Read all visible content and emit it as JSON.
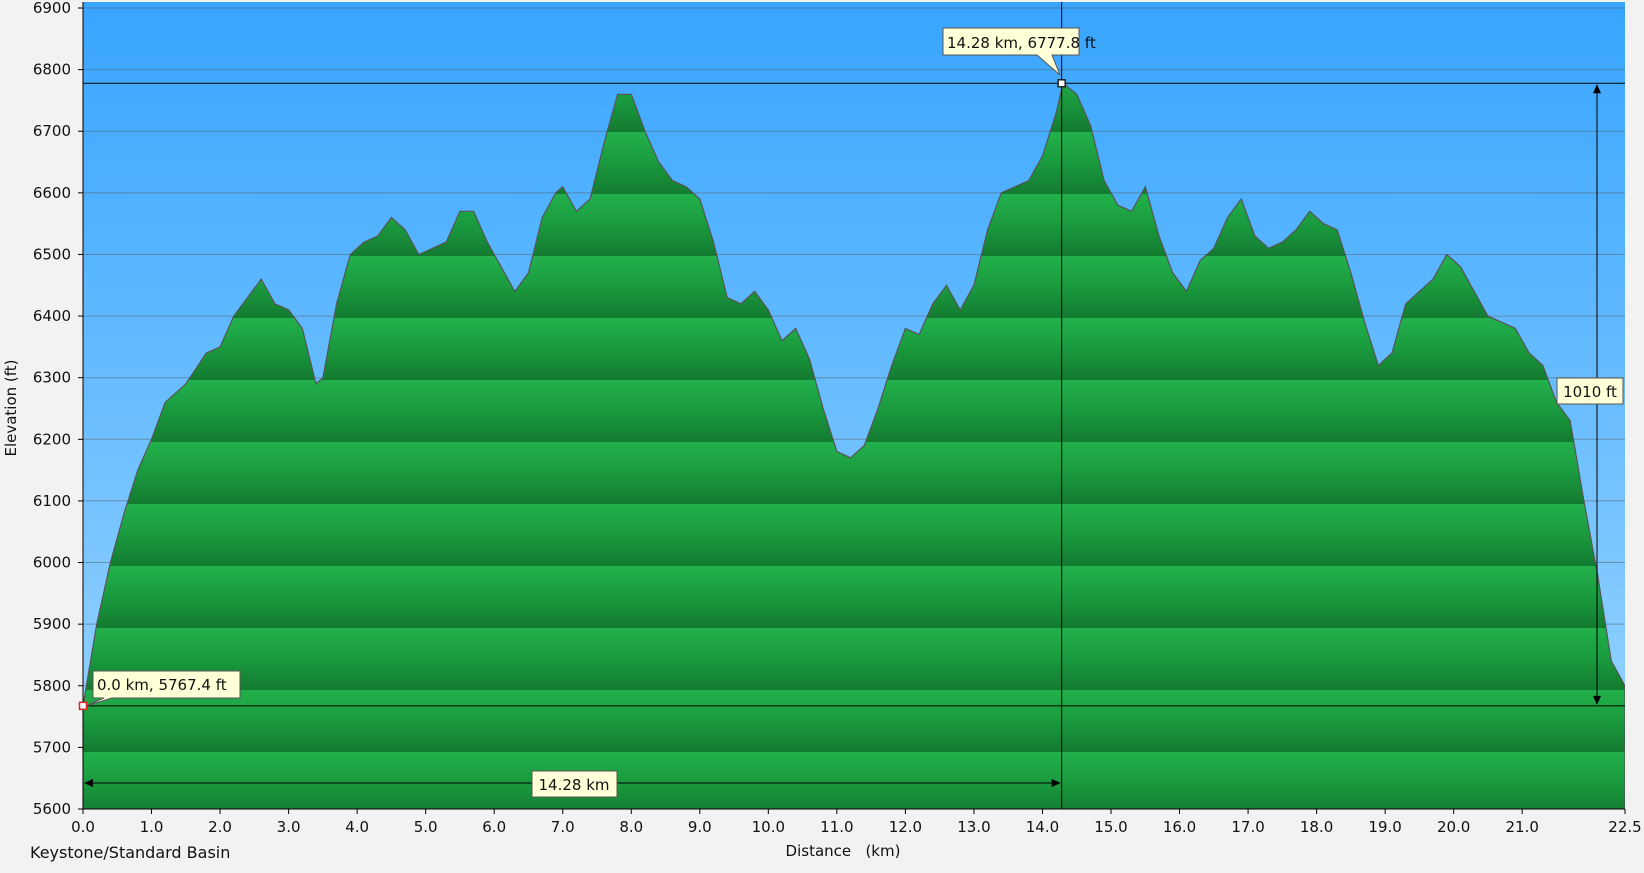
{
  "chart_data": {
    "type": "area",
    "title": "Keystone/Standard Basin",
    "xlabel": "Distance   (km)",
    "ylabel": "Elevation (ft)",
    "xlim": [
      0,
      22.5
    ],
    "ylim": [
      5600,
      6900
    ],
    "x_ticks": [
      "0.0",
      "1.0",
      "2.0",
      "3.0",
      "4.0",
      "5.0",
      "6.0",
      "7.0",
      "8.0",
      "9.0",
      "10.0",
      "11.0",
      "12.0",
      "13.0",
      "14.0",
      "15.0",
      "16.0",
      "17.0",
      "18.0",
      "19.0",
      "20.0",
      "21.0",
      "22.5"
    ],
    "y_ticks": [
      "5600",
      "5700",
      "5800",
      "5900",
      "6000",
      "6100",
      "6200",
      "6300",
      "6400",
      "6500",
      "6600",
      "6700",
      "6800",
      "6900"
    ],
    "grid": true,
    "series": [
      {
        "x": [
          0.0,
          0.2,
          0.4,
          0.6,
          0.8,
          1.0,
          1.2,
          1.5,
          1.8,
          2.0,
          2.2,
          2.4,
          2.6,
          2.8,
          3.0,
          3.2,
          3.4,
          3.5,
          3.7,
          3.9,
          4.1,
          4.3,
          4.5,
          4.7,
          4.9,
          5.1,
          5.3,
          5.5,
          5.7,
          5.9,
          6.1,
          6.3,
          6.5,
          6.7,
          6.9,
          7.0,
          7.2,
          7.4,
          7.6,
          7.8,
          8.0,
          8.2,
          8.4,
          8.6,
          8.8,
          9.0,
          9.2,
          9.4,
          9.6,
          9.8,
          10.0,
          10.2,
          10.4,
          10.6,
          10.8,
          11.0,
          11.2,
          11.4,
          11.6,
          11.8,
          12.0,
          12.2,
          12.4,
          12.6,
          12.8,
          13.0,
          13.2,
          13.4,
          13.6,
          13.8,
          14.0,
          14.2,
          14.3,
          14.5,
          14.7,
          14.9,
          15.1,
          15.3,
          15.5,
          15.7,
          15.9,
          16.1,
          16.3,
          16.5,
          16.7,
          16.9,
          17.1,
          17.3,
          17.5,
          17.7,
          17.9,
          18.1,
          18.3,
          18.5,
          18.7,
          18.9,
          19.1,
          19.3,
          19.5,
          19.7,
          19.9,
          20.1,
          20.3,
          20.5,
          20.7,
          20.9,
          21.1,
          21.3,
          21.5,
          21.7,
          21.9,
          22.1,
          22.3,
          22.5
        ],
        "y": [
          5767.4,
          5900,
          6000,
          6080,
          6150,
          6200,
          6260,
          6290,
          6340,
          6350,
          6400,
          6430,
          6460,
          6420,
          6410,
          6380,
          6290,
          6300,
          6420,
          6500,
          6520,
          6530,
          6560,
          6540,
          6500,
          6510,
          6520,
          6570,
          6570,
          6520,
          6480,
          6440,
          6470,
          6560,
          6600,
          6610,
          6570,
          6590,
          6680,
          6760,
          6760,
          6700,
          6650,
          6620,
          6610,
          6590,
          6520,
          6430,
          6420,
          6440,
          6410,
          6360,
          6380,
          6330,
          6250,
          6180,
          6170,
          6190,
          6250,
          6320,
          6380,
          6370,
          6420,
          6450,
          6410,
          6450,
          6540,
          6600,
          6610,
          6620,
          6660,
          6730,
          6777.8,
          6760,
          6710,
          6620,
          6580,
          6570,
          6610,
          6530,
          6470,
          6440,
          6490,
          6510,
          6560,
          6590,
          6530,
          6510,
          6520,
          6540,
          6570,
          6550,
          6540,
          6470,
          6390,
          6320,
          6340,
          6420,
          6440,
          6460,
          6500,
          6480,
          6440,
          6400,
          6390,
          6380,
          6340,
          6320,
          6260,
          6230,
          6100,
          5980,
          5840,
          5800
        ]
      }
    ],
    "annotations": {
      "start_point": "0.0 km, 5767.4 ft",
      "end_point": "14.28 km, 6777.8 ft",
      "distance_span": "14.28 km",
      "elevation_span": "1010 ft"
    },
    "markers": {
      "start": {
        "x": 0.0,
        "y": 5767.4
      },
      "end": {
        "x": 14.28,
        "y": 6777.8
      }
    }
  },
  "colors": {
    "sky_top": "#38a5ff",
    "sky_bottom": "#9cd6ff",
    "profile_fill_light": "#22b14c",
    "profile_fill_dark": "#137a30",
    "profile_line": "#555555",
    "callout_bg": "#ffffd8",
    "gridline": "#555555"
  }
}
